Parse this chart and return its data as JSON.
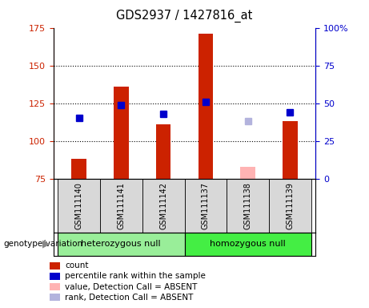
{
  "title": "GDS2937 / 1427816_at",
  "samples": [
    "GSM111140",
    "GSM111141",
    "GSM111142",
    "GSM111137",
    "GSM111138",
    "GSM111139"
  ],
  "bar_values": [
    88,
    136,
    111,
    171,
    null,
    113
  ],
  "bar_color": "#cc2200",
  "bar_absent_value": 83,
  "bar_absent_color": "#ffb3b3",
  "rank_present": [
    115,
    124,
    118,
    126,
    null,
    119
  ],
  "rank_absent_value": 113,
  "rank_absent_color": "#b3b3dd",
  "rank_present_color": "#0000cc",
  "ylim_left": [
    75,
    175
  ],
  "ylim_right": [
    0,
    100
  ],
  "yticks_left": [
    75,
    100,
    125,
    150,
    175
  ],
  "yticks_right": [
    0,
    25,
    50,
    75,
    100
  ],
  "group1_label": "heterozygous null",
  "group2_label": "homozygous null",
  "group1_indices": [
    0,
    1,
    2
  ],
  "group2_indices": [
    3,
    4,
    5
  ],
  "group1_color": "#99ee99",
  "group2_color": "#44ee44",
  "legend_items": [
    {
      "label": "count",
      "color": "#cc2200"
    },
    {
      "label": "percentile rank within the sample",
      "color": "#0000cc"
    },
    {
      "label": "value, Detection Call = ABSENT",
      "color": "#ffb3b3"
    },
    {
      "label": "rank, Detection Call = ABSENT",
      "color": "#b3b3dd"
    }
  ],
  "left_axis_color": "#cc2200",
  "right_axis_color": "#0000cc",
  "bar_width": 0.35,
  "marker_size": 6,
  "label_fontsize": 8,
  "tick_fontsize": 8
}
